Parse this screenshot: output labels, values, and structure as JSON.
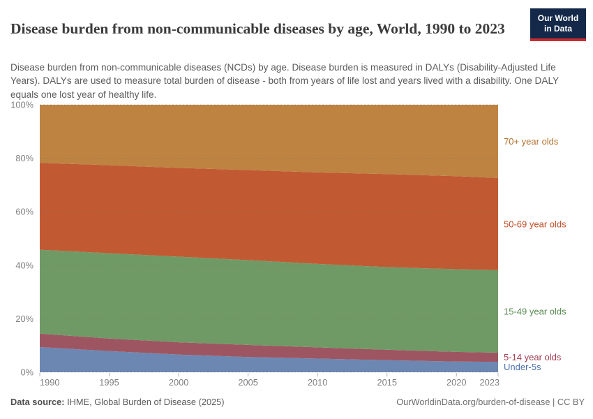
{
  "header": {
    "title": "Disease burden from non-communicable diseases by age, World, 1990 to 2023",
    "subtitle": "Disease burden from non-communicable diseases (NCDs) by age. Disease burden is measured in DALYs (Disability-Adjusted Life Years). DALYs are used to measure total burden of disease - both from years of life lost and years lived with a disability. One DALY equals one lost year of healthy life.",
    "logo": {
      "line1": "Our World",
      "line2": "in Data",
      "bg_color": "#14294a",
      "bar_color": "#c52b33"
    }
  },
  "chart_data": {
    "type": "area",
    "stacked": true,
    "relative": true,
    "unit": "%",
    "ylim": [
      0,
      100
    ],
    "grid": "dashed-horizontal",
    "legend_position": "right-of-plot",
    "x": [
      1990,
      1995,
      2000,
      2005,
      2010,
      2015,
      2020,
      2023
    ],
    "xticks": [
      1990,
      1995,
      2000,
      2005,
      2010,
      2015,
      2020,
      2023
    ],
    "yticks": [
      0,
      20,
      40,
      60,
      80,
      100
    ],
    "series": [
      {
        "name": "Under-5s",
        "slug": "under-5s",
        "color": "#6c87b2",
        "label_color": "#4c6fb0",
        "values": [
          9.4,
          7.9,
          6.6,
          5.7,
          5.1,
          4.5,
          4.0,
          3.9
        ]
      },
      {
        "name": "5-14 year olds",
        "slug": "5-14",
        "color": "#9d5661",
        "label_color": "#a23a50",
        "values": [
          5.0,
          4.7,
          4.6,
          4.5,
          4.2,
          3.9,
          3.6,
          3.4
        ]
      },
      {
        "name": "15-49 year olds",
        "slug": "15-49",
        "color": "#6f9a66",
        "label_color": "#5a8a51",
        "values": [
          31.4,
          31.9,
          32.0,
          31.7,
          31.2,
          30.9,
          30.9,
          30.9
        ]
      },
      {
        "name": "50-69 year olds",
        "slug": "50-69",
        "color": "#c15a33",
        "label_color": "#c44e27",
        "values": [
          32.5,
          32.9,
          33.2,
          33.7,
          34.2,
          34.8,
          34.8,
          34.4
        ]
      },
      {
        "name": "70+ year olds",
        "slug": "70-plus",
        "color": "#be8341",
        "label_color": "#b2702a",
        "values": [
          21.7,
          22.6,
          23.6,
          24.4,
          25.3,
          25.9,
          26.7,
          27.4
        ]
      }
    ]
  },
  "footer": {
    "source_label": "Data source:",
    "source_text": " IHME, Global Burden of Disease (2025)",
    "rights": "OurWorldinData.org/burden-of-disease | CC BY"
  }
}
